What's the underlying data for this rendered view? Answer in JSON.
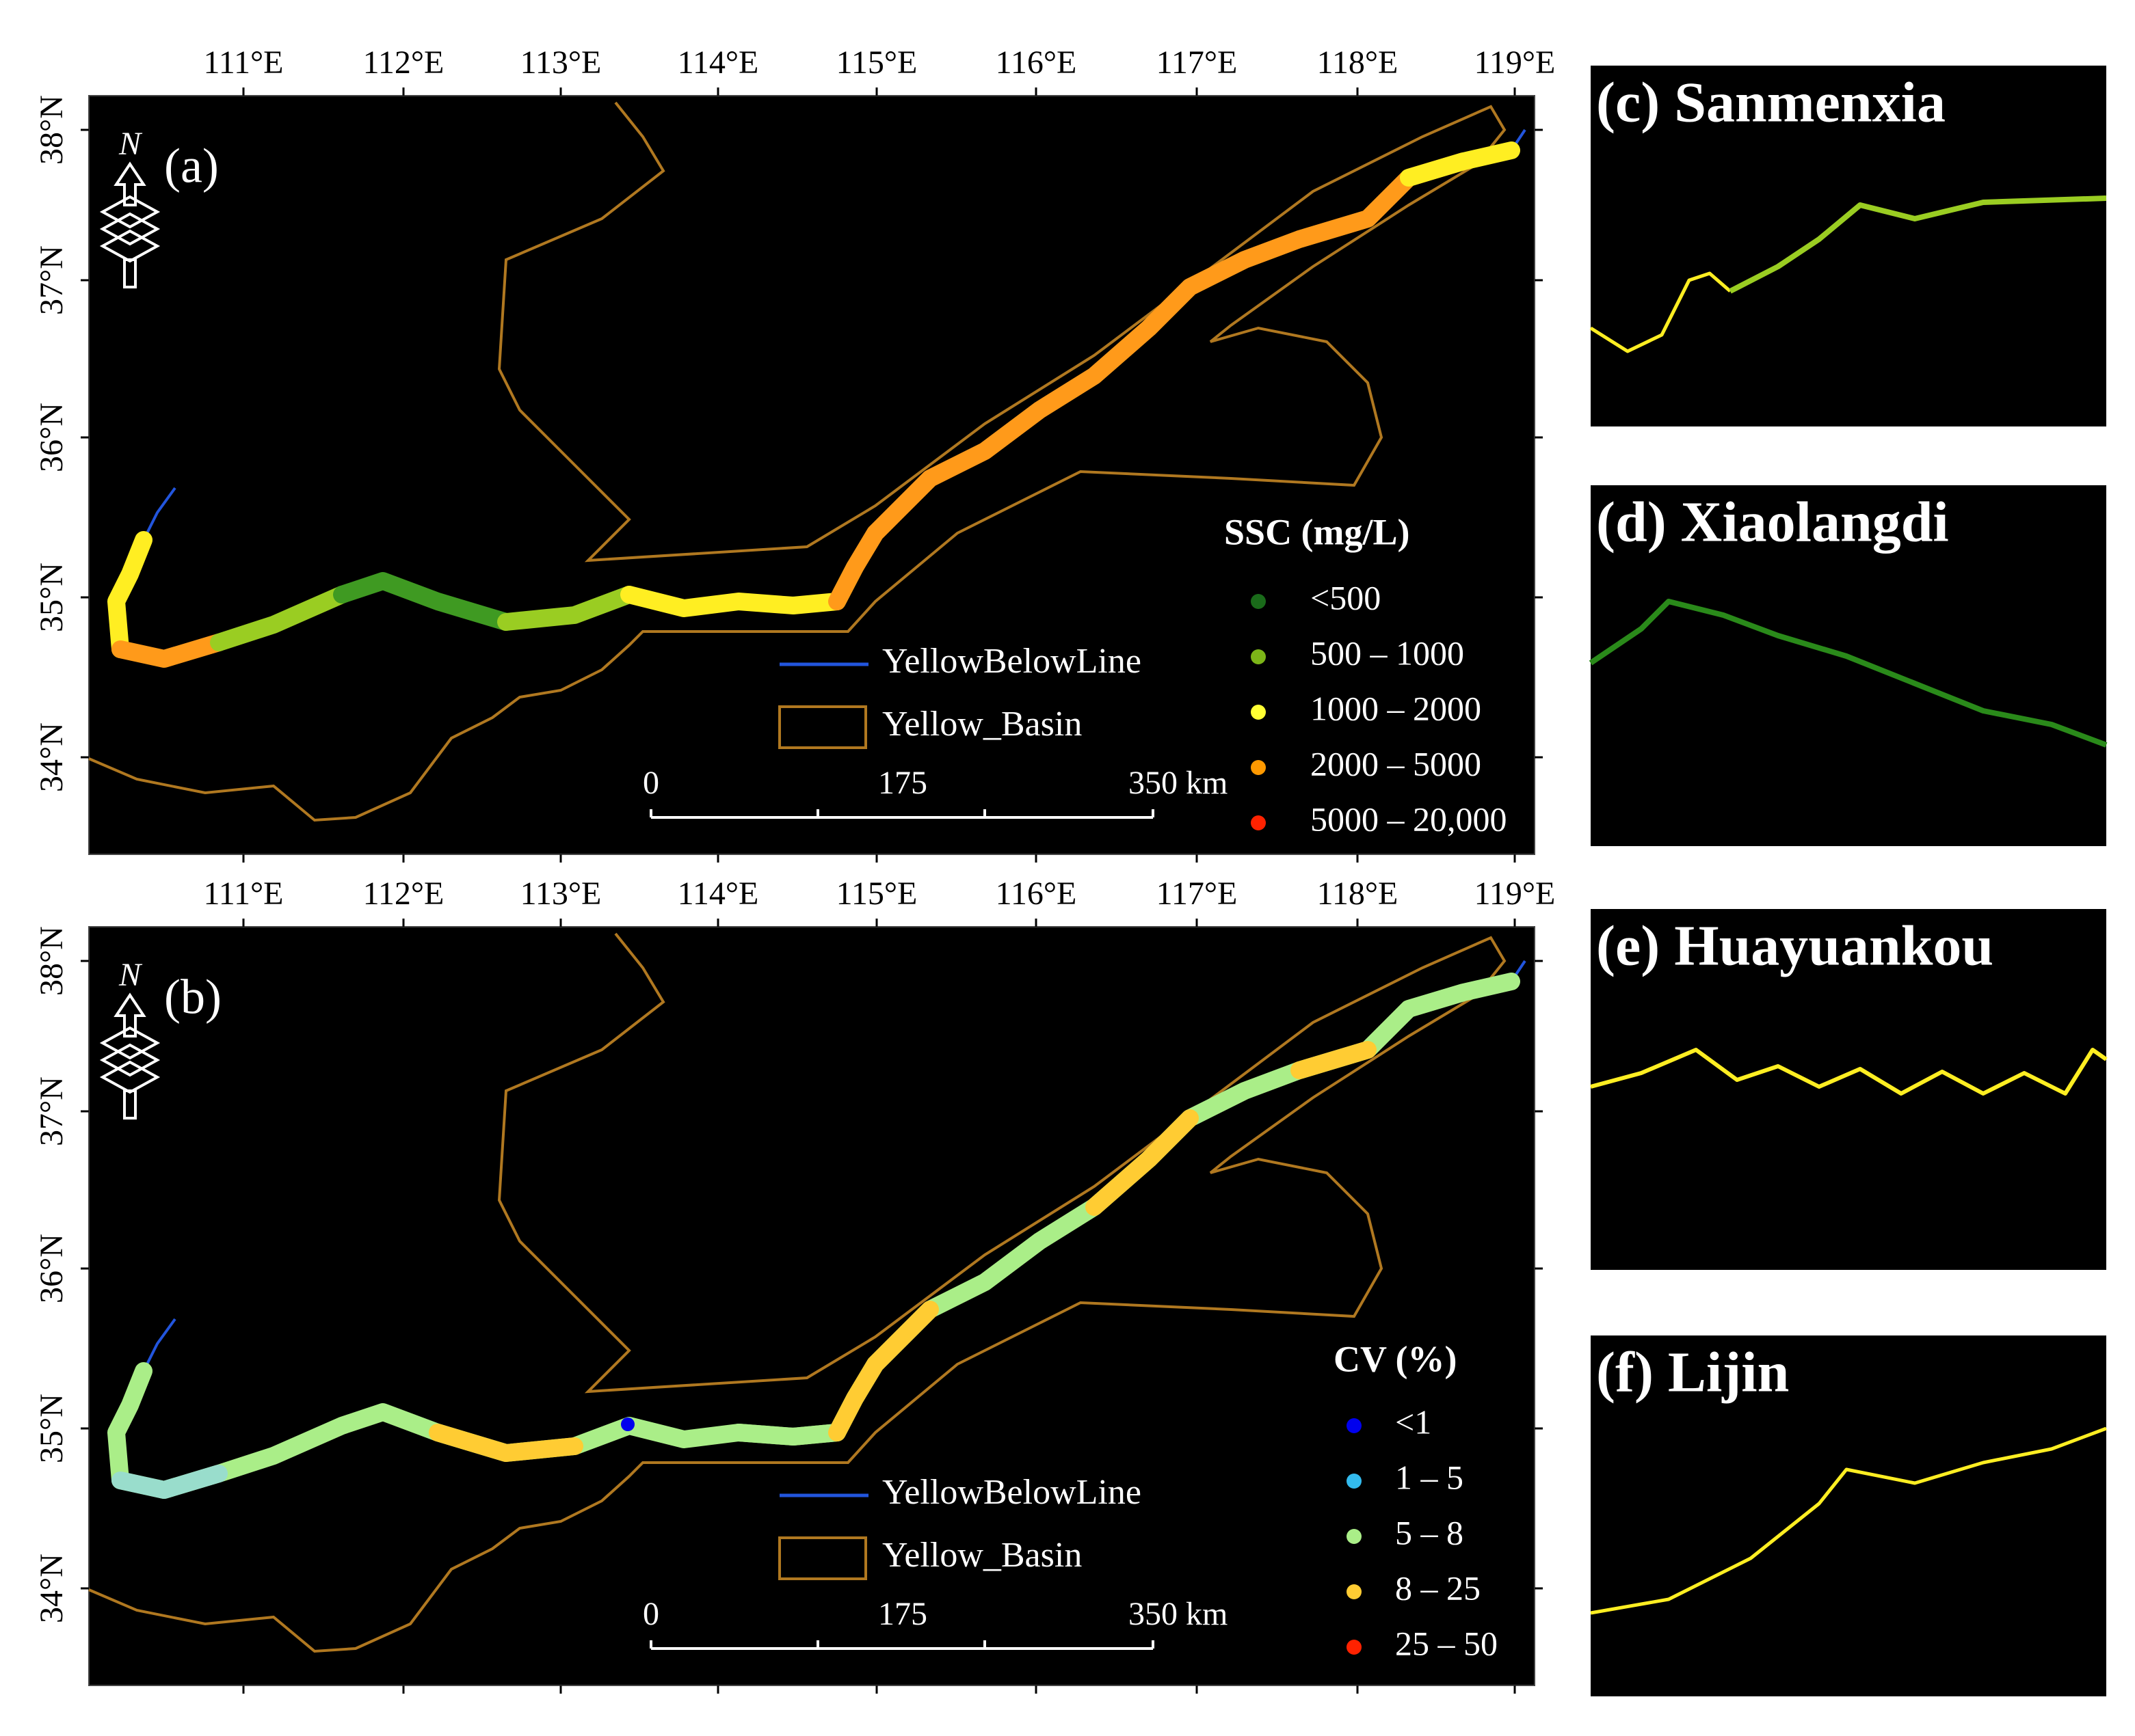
{
  "panels": [
    {
      "label": "(a)",
      "north": "N",
      "x_ticks": [
        "111°E",
        "112°E",
        "113°E",
        "114°E",
        "115°E",
        "116°E",
        "117°E",
        "118°E",
        "119°E"
      ],
      "y_ticks": [
        "38°N",
        "37°N",
        "36°N",
        "35°N",
        "34°N"
      ],
      "legend_title": "SSC (mg/L)",
      "legend_items": [
        "<500",
        "500 – 1000",
        "1000 – 2000",
        "2000 – 5000",
        "5000 – 20,000"
      ],
      "line_legend": "YellowBelowLine",
      "basin_legend": "Yellow_Basin",
      "scale_labels": [
        "0",
        "175",
        "350 km"
      ]
    },
    {
      "label": "(b)",
      "north": "N",
      "x_ticks": [
        "111°E",
        "112°E",
        "113°E",
        "114°E",
        "115°E",
        "116°E",
        "117°E",
        "118°E",
        "119°E"
      ],
      "y_ticks": [
        "38°N",
        "37°N",
        "36°N",
        "35°N",
        "34°N"
      ],
      "legend_title": "CV (%)",
      "legend_items": [
        "<1",
        "1 – 5",
        "5 – 8",
        "8 – 25",
        "25 – 50"
      ],
      "line_legend": "YellowBelowLine",
      "basin_legend": "Yellow_Basin",
      "scale_labels": [
        "0",
        "175",
        "350 km"
      ]
    }
  ],
  "insets": [
    {
      "title": "(c) Sanmenxia"
    },
    {
      "title": "(d) Xiaolangdi"
    },
    {
      "title": "(e) Huayuankou"
    },
    {
      "title": "(f) Lijin"
    }
  ]
}
